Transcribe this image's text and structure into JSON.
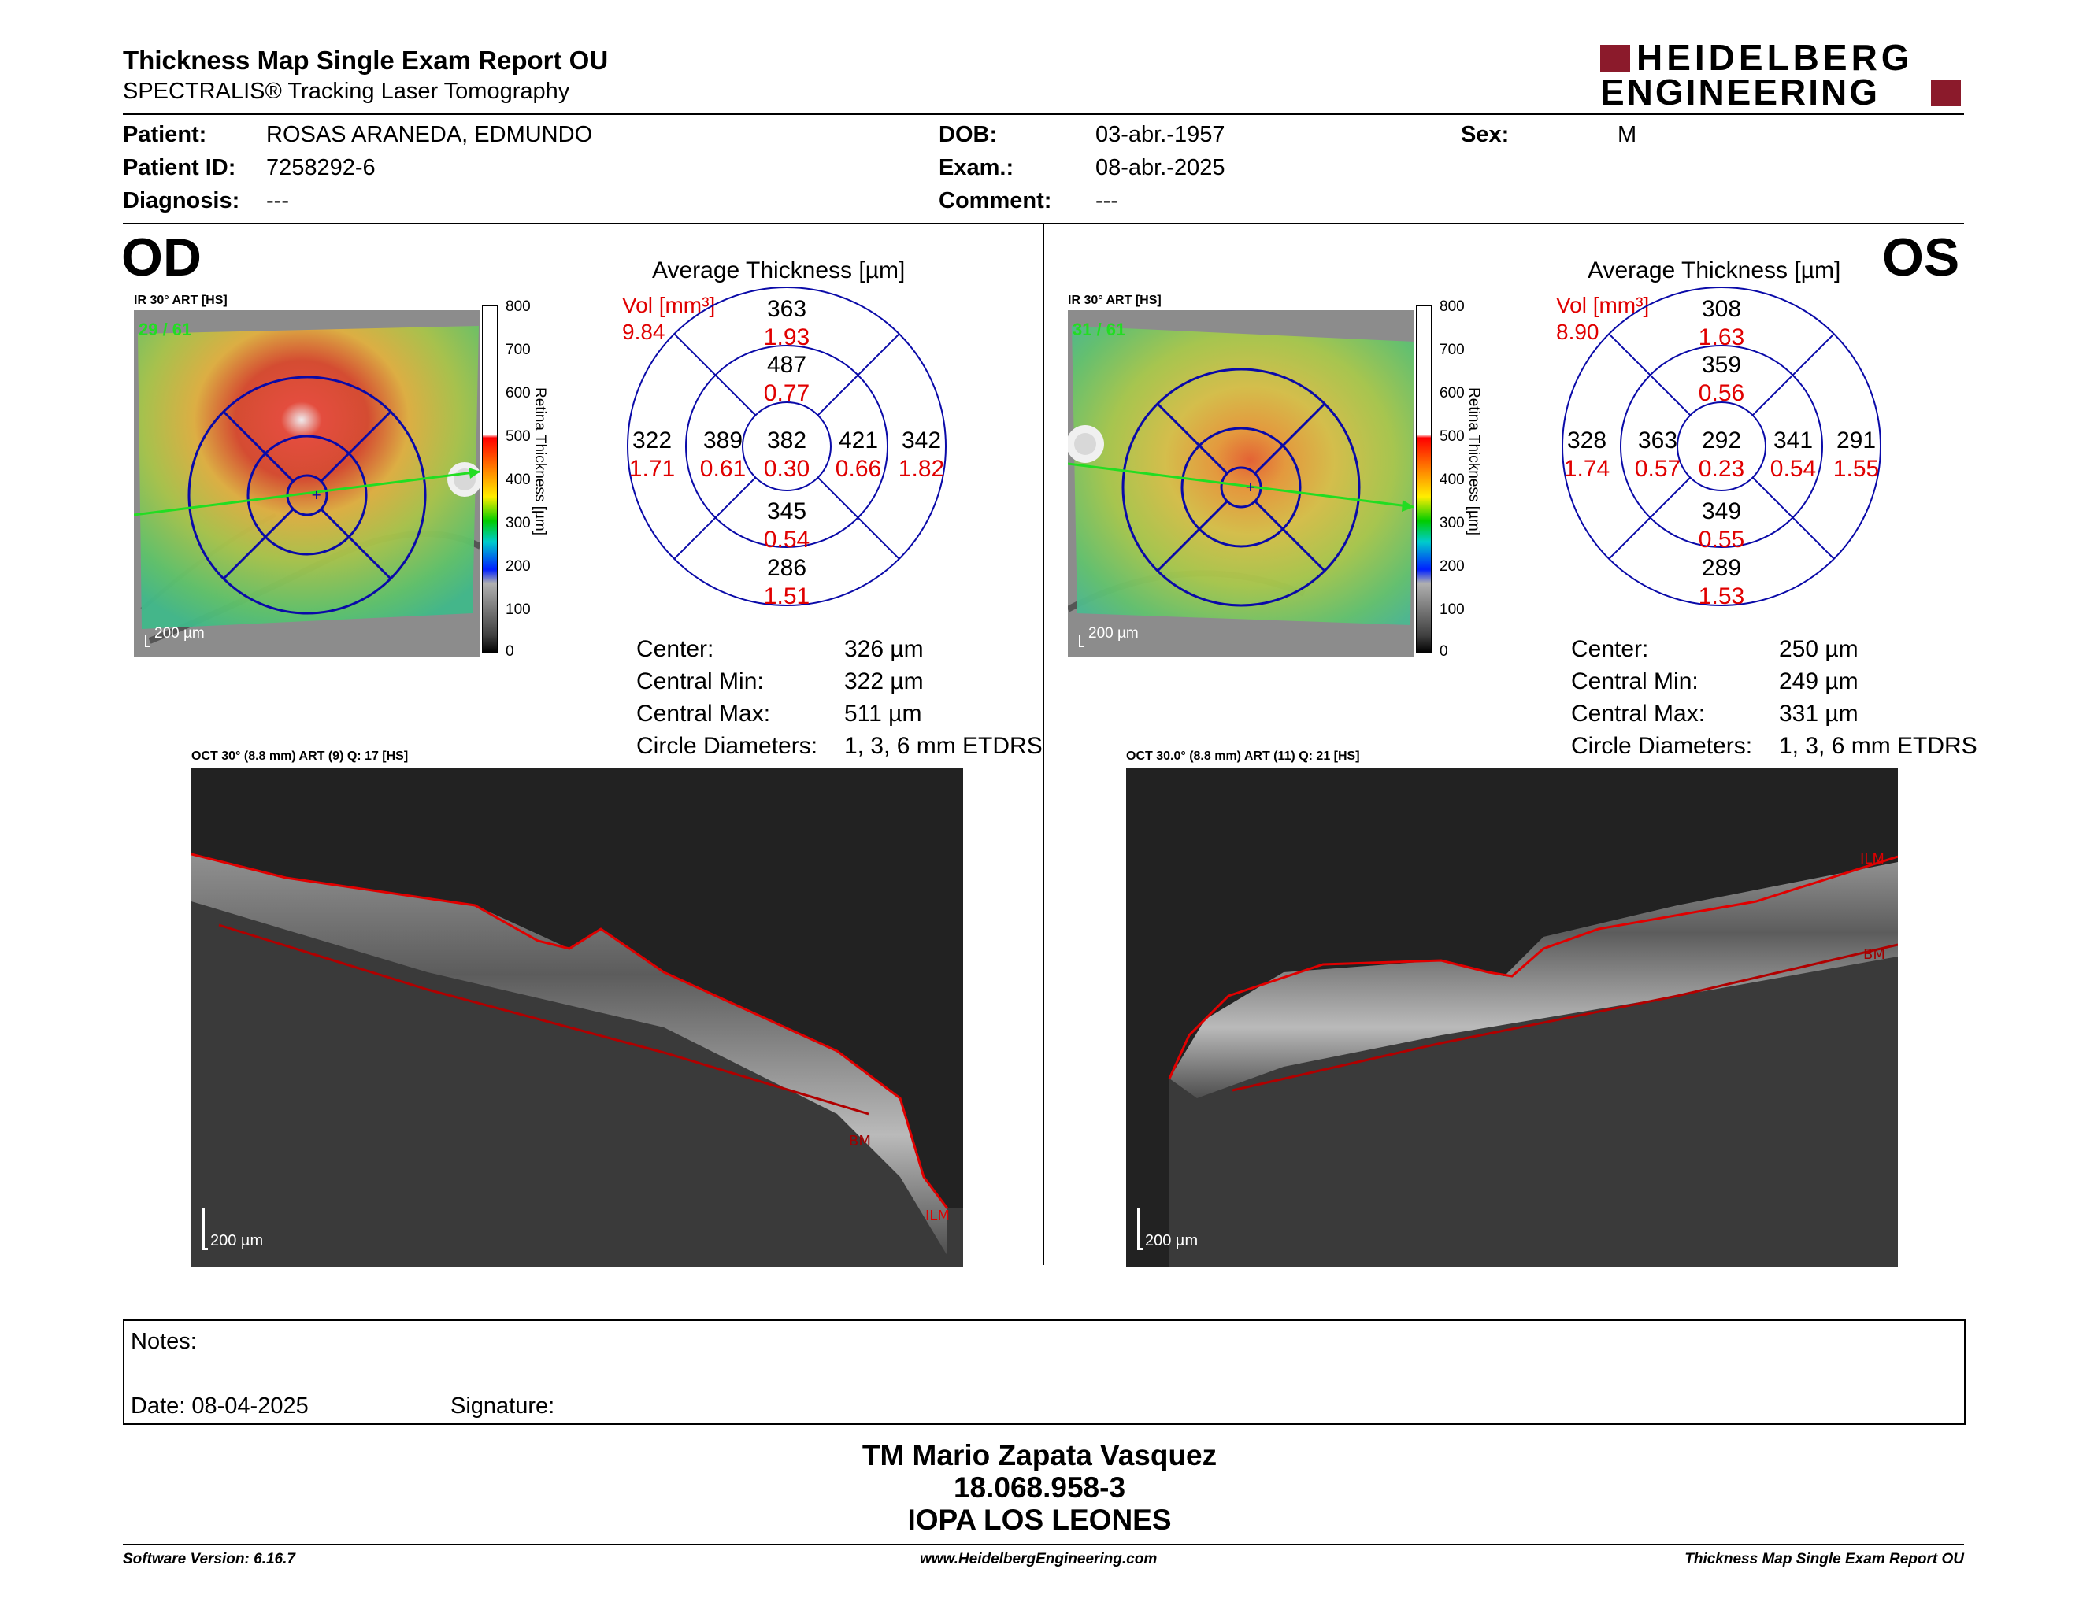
{
  "report": {
    "title": "Thickness Map Single Exam Report OU",
    "subtitle": "SPECTRALIS® Tracking Laser Tomography",
    "logo_line1": "HEIDELBERG",
    "logo_line2": "ENGINEERING"
  },
  "patient": {
    "patient_label": "Patient:",
    "patient_value": "ROSAS ARANEDA, EDMUNDO",
    "id_label": "Patient ID:",
    "id_value": "7258292-6",
    "diag_label": "Diagnosis:",
    "diag_value": "---",
    "dob_label": "DOB:",
    "dob_value": "03-abr.-1957",
    "exam_label": "Exam.:",
    "exam_value": "08-abr.-2025",
    "comment_label": "Comment:",
    "comment_value": "---",
    "sex_label": "Sex:",
    "sex_value": "M"
  },
  "od": {
    "eye": "OD",
    "ir_label": "IR 30° ART [HS]",
    "frames": "29 / 61",
    "scale_bar": "200 µm",
    "avg_title": "Average Thickness [µm]",
    "vol_label": "Vol [mm³]",
    "vol_value": "9.84",
    "etdrs": {
      "center": {
        "t": "382",
        "v": "0.30"
      },
      "inner_sup": {
        "t": "487",
        "v": "0.77"
      },
      "inner_inf": {
        "t": "345",
        "v": "0.54"
      },
      "inner_left": {
        "t": "389",
        "v": "0.61"
      },
      "inner_right": {
        "t": "421",
        "v": "0.66"
      },
      "outer_sup": {
        "t": "363",
        "v": "1.93"
      },
      "outer_inf": {
        "t": "286",
        "v": "1.51"
      },
      "outer_left": {
        "t": "322",
        "v": "1.71"
      },
      "outer_right": {
        "t": "342",
        "v": "1.82"
      }
    },
    "stats": {
      "center_label": "Center:",
      "center_value": "326 µm",
      "min_label": "Central Min:",
      "min_value": "322 µm",
      "max_label": "Central Max:",
      "max_value": "511 µm",
      "circ_label": "Circle Diameters:",
      "circ_value": "1, 3, 6 mm ETDRS"
    },
    "oct_label": "OCT 30° (8.8 mm) ART (9) Q: 17 [HS]",
    "oct_scale": "200 µm",
    "ilm": "ILM",
    "bm": "BM"
  },
  "os": {
    "eye": "OS",
    "ir_label": "IR 30° ART [HS]",
    "frames": "31 / 61",
    "scale_bar": "200 µm",
    "avg_title": "Average Thickness [µm]",
    "vol_label": "Vol [mm³]",
    "vol_value": "8.90",
    "etdrs": {
      "center": {
        "t": "292",
        "v": "0.23"
      },
      "inner_sup": {
        "t": "359",
        "v": "0.56"
      },
      "inner_inf": {
        "t": "349",
        "v": "0.55"
      },
      "inner_left": {
        "t": "363",
        "v": "0.57"
      },
      "inner_right": {
        "t": "341",
        "v": "0.54"
      },
      "outer_sup": {
        "t": "308",
        "v": "1.63"
      },
      "outer_inf": {
        "t": "289",
        "v": "1.53"
      },
      "outer_left": {
        "t": "328",
        "v": "1.74"
      },
      "outer_right": {
        "t": "291",
        "v": "1.55"
      }
    },
    "stats": {
      "center_label": "Center:",
      "center_value": "250 µm",
      "min_label": "Central Min:",
      "min_value": "249 µm",
      "max_label": "Central Max:",
      "max_value": "331 µm",
      "circ_label": "Circle Diameters:",
      "circ_value": "1, 3, 6 mm ETDRS"
    },
    "oct_label": "OCT 30.0° (8.8 mm) ART (11) Q: 21 [HS]",
    "oct_scale": "200 µm",
    "ilm": "ILM",
    "bm": "BM"
  },
  "colorbar": {
    "ticks": [
      "800",
      "700",
      "600",
      "500",
      "400",
      "300",
      "200",
      "100",
      "0"
    ],
    "label": "Retina Thickness [µm]"
  },
  "notes": {
    "notes_label": "Notes:",
    "date_label": "Date: 08-04-2025",
    "signature_label": "Signature:"
  },
  "signature": {
    "name": "TM Mario Zapata Vasquez",
    "rut": "18.068.958-3",
    "org": "IOPA LOS LEONES"
  },
  "footer": {
    "software": "Software Version: 6.16.7",
    "website": "www.HeidelbergEngineering.com",
    "report": "Thickness Map Single Exam Report OU"
  },
  "colors": {
    "logo": "#8b1a2b",
    "red_text": "#e00000",
    "etdrs_grid": "#0a0aa8",
    "frame_green": "#22dd22"
  }
}
